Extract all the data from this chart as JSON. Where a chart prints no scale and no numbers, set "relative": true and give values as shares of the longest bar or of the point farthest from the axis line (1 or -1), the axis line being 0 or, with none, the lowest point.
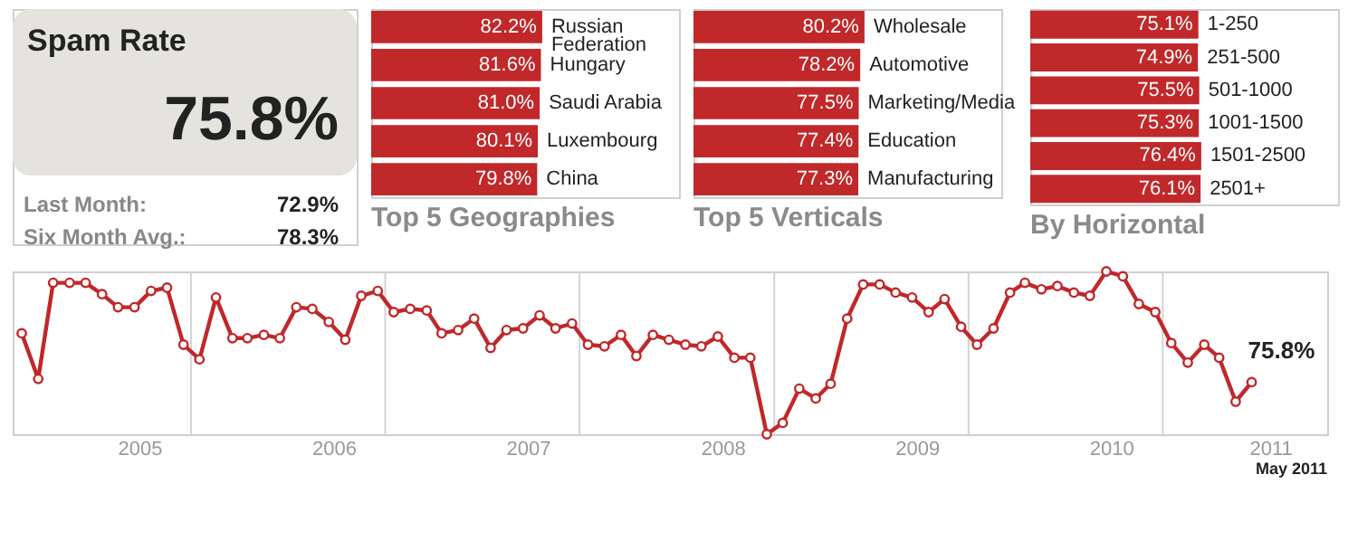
{
  "chart_data": [
    {
      "type": "other",
      "title": "Spam Rate",
      "annotations": [
        "75.8%",
        "Last Month:",
        "72.9%",
        "Six Month Avg.:",
        "78.3%"
      ]
    },
    {
      "type": "bar",
      "orientation": "horizontal",
      "title": "Top 5 Geographies",
      "categories": [
        "Russian Federation",
        "Hungary",
        "Saudi Arabia",
        "Luxembourg",
        "China"
      ],
      "values": [
        82.2,
        81.6,
        81.0,
        80.1,
        79.8
      ],
      "value_labels": [
        "82.2%",
        "81.6%",
        "81.0%",
        "80.1%",
        "79.8%"
      ],
      "color": "#c0282a",
      "tick_labels": "y"
    },
    {
      "type": "bar",
      "orientation": "horizontal",
      "title": "Top 5 Verticals",
      "categories": [
        "Wholesale",
        "Automotive",
        "Marketing/Media",
        "Education",
        "Manufacturing"
      ],
      "values": [
        80.2,
        78.2,
        77.5,
        77.4,
        77.3
      ],
      "value_labels": [
        "80.2%",
        "78.2%",
        "77.5%",
        "77.4%",
        "77.3%"
      ],
      "color": "#c0282a",
      "tick_labels": "y"
    },
    {
      "type": "bar",
      "orientation": "horizontal",
      "title": "By Horizontal",
      "categories": [
        "1-250",
        "251-500",
        "501-1000",
        "1001-1500",
        "1501-2500",
        "2501+"
      ],
      "values": [
        75.1,
        74.9,
        75.5,
        75.3,
        76.4,
        76.1
      ],
      "value_labels": [
        "75.1%",
        "74.9%",
        "75.5%",
        "75.3%",
        "76.4%",
        "76.1%"
      ],
      "color": "#c0282a",
      "tick_labels": "y"
    },
    {
      "type": "line",
      "relative": true,
      "marker": "circle",
      "line_style": "solid",
      "grid": false,
      "tick_labels": "x",
      "x": [
        "2005-01",
        "2005-02",
        "2005-03",
        "2005-04",
        "2005-05",
        "2005-06",
        "2005-07",
        "2005-08",
        "2005-09",
        "2005-10",
        "2005-11",
        "2005-12",
        "2006-01",
        "2006-02",
        "2006-03",
        "2006-04",
        "2006-05",
        "2006-06",
        "2006-07",
        "2006-08",
        "2006-09",
        "2006-10",
        "2006-11",
        "2006-12",
        "2007-01",
        "2007-02",
        "2007-03",
        "2007-04",
        "2007-05",
        "2007-06",
        "2007-07",
        "2007-08",
        "2007-09",
        "2007-10",
        "2007-11",
        "2007-12",
        "2008-01",
        "2008-02",
        "2008-03",
        "2008-04",
        "2008-05",
        "2008-06",
        "2008-07",
        "2008-08",
        "2008-09",
        "2008-10",
        "2008-11",
        "2008-12",
        "2009-01",
        "2009-02",
        "2009-03",
        "2009-04",
        "2009-05",
        "2009-06",
        "2009-07",
        "2009-08",
        "2009-09",
        "2009-10",
        "2009-11",
        "2009-12",
        "2010-01",
        "2010-02",
        "2010-03",
        "2010-04",
        "2010-05",
        "2010-06",
        "2010-07",
        "2010-08",
        "2010-09",
        "2010-10",
        "2010-11",
        "2010-12",
        "2011-01",
        "2011-02",
        "2011-03",
        "2011-04",
        "2011-05"
      ],
      "series": [
        {
          "color": "#c0282a",
          "values": [
            0.62,
            0.34,
            0.93,
            0.93,
            0.93,
            0.86,
            0.78,
            0.78,
            0.88,
            0.9,
            0.55,
            0.46,
            0.84,
            0.59,
            0.59,
            0.61,
            0.59,
            0.78,
            0.77,
            0.69,
            0.58,
            0.85,
            0.88,
            0.75,
            0.77,
            0.76,
            0.62,
            0.64,
            0.71,
            0.53,
            0.64,
            0.65,
            0.73,
            0.65,
            0.68,
            0.55,
            0.54,
            0.61,
            0.48,
            0.61,
            0.58,
            0.55,
            0.54,
            0.6,
            0.47,
            0.47,
            0,
            0.07,
            0.28,
            0.22,
            0.31,
            0.71,
            0.92,
            0.92,
            0.87,
            0.84,
            0.75,
            0.83,
            0.66,
            0.55,
            0.65,
            0.87,
            0.93,
            0.89,
            0.91,
            0.87,
            0.85,
            1,
            0.97,
            0.8,
            0.75,
            0.56,
            0.44,
            0.55,
            0.47,
            0.2,
            0.32
          ]
        }
      ],
      "xlim": [
        "2004-12-15",
        "2011-09-20"
      ],
      "xticks": [
        {
          "value": "2005-08-10",
          "label": "2005"
        },
        {
          "value": "2006-08-10",
          "label": "2006"
        },
        {
          "value": "2007-08-10",
          "label": "2007"
        },
        {
          "value": "2008-08-10",
          "label": "2008"
        },
        {
          "value": "2009-08-10",
          "label": "2009"
        },
        {
          "value": "2010-08-10",
          "label": "2010"
        },
        {
          "value": "2011-06-05",
          "label": "2011"
        }
      ],
      "ref_lines": [
        {
          "axis": "x",
          "value": "2005-11-15",
          "color": "#d4d4d4"
        },
        {
          "axis": "x",
          "value": "2006-11-15",
          "color": "#d4d4d4"
        },
        {
          "axis": "x",
          "value": "2007-11-15",
          "color": "#d4d4d4"
        },
        {
          "axis": "x",
          "value": "2008-11-15",
          "color": "#d4d4d4"
        },
        {
          "axis": "x",
          "value": "2009-11-15",
          "color": "#d4d4d4"
        },
        {
          "axis": "x",
          "value": "2010-11-15",
          "color": "#d4d4d4"
        }
      ],
      "annotations": [
        {
          "text": "75.8%",
          "x": "2011-05",
          "y": 0.32
        },
        "May 2011"
      ]
    }
  ]
}
